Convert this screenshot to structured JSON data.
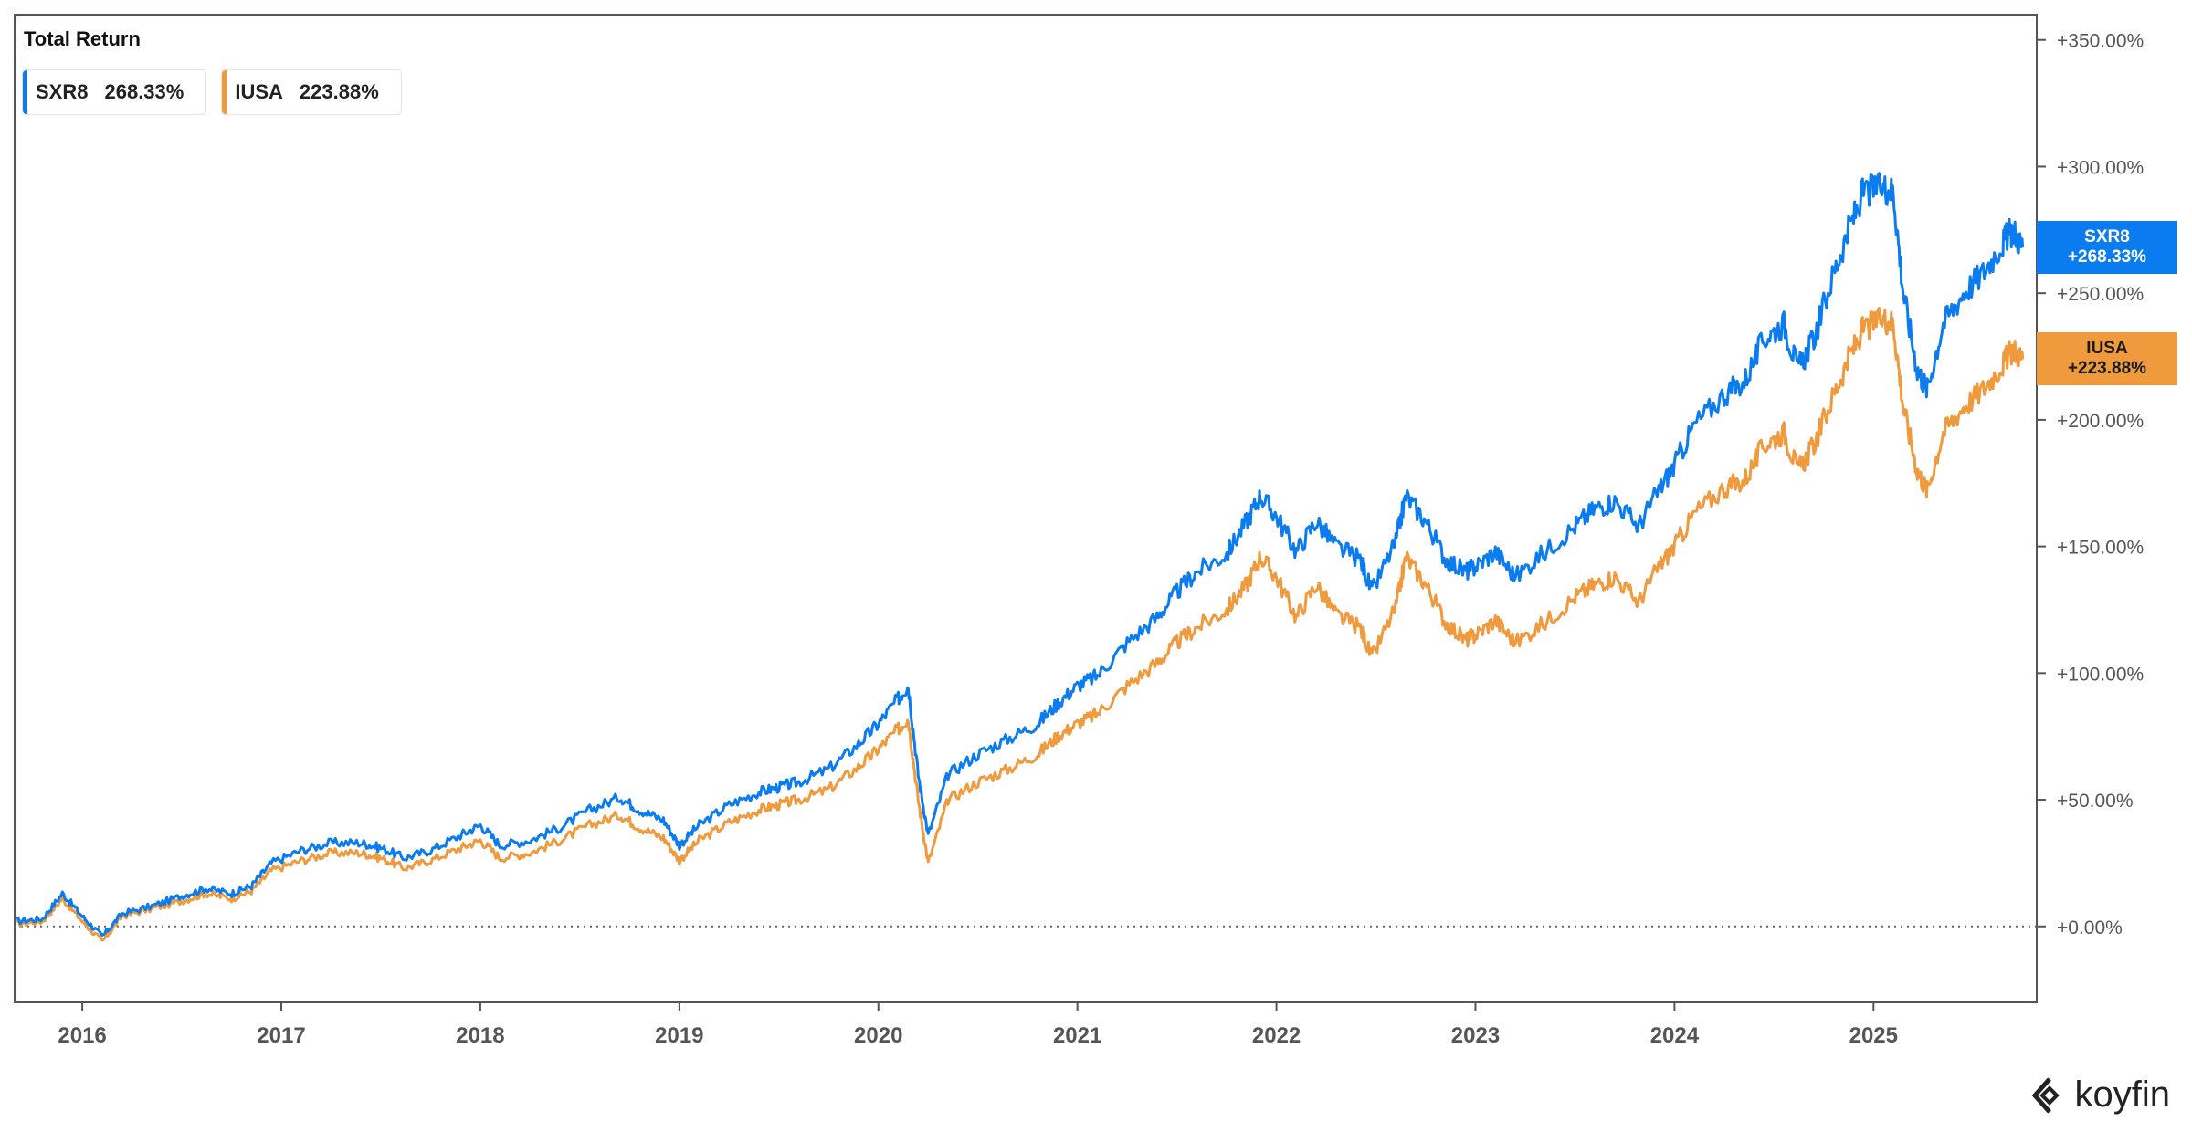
{
  "colors": {
    "sxr8": "#0a7cf0",
    "iusa": "#f09a3e",
    "axis": "#555555",
    "zero": "#666666"
  },
  "icons": {
    "logo": "koyfin-logo-icon"
  },
  "brand": "koyfin",
  "chart_data": {
    "type": "line",
    "title": "Total Return",
    "xlabel": "",
    "ylabel": "",
    "xlim": [
      2015.66,
      2025.82
    ],
    "ylim": [
      -30,
      360
    ],
    "grid": false,
    "legend": "top-left",
    "x_ticks": [
      {
        "x": 2016,
        "label": "2016"
      },
      {
        "x": 2017,
        "label": "2017"
      },
      {
        "x": 2018,
        "label": "2018"
      },
      {
        "x": 2019,
        "label": "2019"
      },
      {
        "x": 2020,
        "label": "2020"
      },
      {
        "x": 2021,
        "label": "2021"
      },
      {
        "x": 2022,
        "label": "2022"
      },
      {
        "x": 2023,
        "label": "2023"
      },
      {
        "x": 2024,
        "label": "2024"
      },
      {
        "x": 2025,
        "label": "2025"
      }
    ],
    "y_ticks": [
      {
        "y": 0,
        "label": "+0.00%"
      },
      {
        "y": 50,
        "label": "+50.00%"
      },
      {
        "y": 100,
        "label": "+100.00%"
      },
      {
        "y": 150,
        "label": "+150.00%"
      },
      {
        "y": 200,
        "label": "+200.00%"
      },
      {
        "y": 250,
        "label": "+250.00%"
      },
      {
        "y": 300,
        "label": "+300.00%"
      },
      {
        "y": 350,
        "label": "+350.00%"
      }
    ],
    "series": [
      {
        "name": "SXR8",
        "last": "268.33%",
        "tag": "+268.33%",
        "color": "#0a7cf0",
        "points": [
          [
            2015.67,
            2
          ],
          [
            2015.8,
            3
          ],
          [
            2015.9,
            13
          ],
          [
            2016.0,
            4
          ],
          [
            2016.1,
            -4
          ],
          [
            2016.2,
            5
          ],
          [
            2016.35,
            8
          ],
          [
            2016.5,
            12
          ],
          [
            2016.62,
            15
          ],
          [
            2016.75,
            13
          ],
          [
            2016.85,
            16
          ],
          [
            2016.95,
            25
          ],
          [
            2017.1,
            30
          ],
          [
            2017.25,
            33
          ],
          [
            2017.4,
            33
          ],
          [
            2017.5,
            31
          ],
          [
            2017.62,
            27
          ],
          [
            2017.75,
            30
          ],
          [
            2017.9,
            36
          ],
          [
            2018.0,
            40
          ],
          [
            2018.1,
            32
          ],
          [
            2018.25,
            34
          ],
          [
            2018.4,
            39
          ],
          [
            2018.55,
            46
          ],
          [
            2018.7,
            51
          ],
          [
            2018.8,
            46
          ],
          [
            2018.92,
            42
          ],
          [
            2019.0,
            32
          ],
          [
            2019.1,
            40
          ],
          [
            2019.25,
            48
          ],
          [
            2019.4,
            53
          ],
          [
            2019.5,
            55
          ],
          [
            2019.6,
            57
          ],
          [
            2019.75,
            62
          ],
          [
            2019.9,
            72
          ],
          [
            2020.0,
            80
          ],
          [
            2020.1,
            90
          ],
          [
            2020.15,
            95
          ],
          [
            2020.2,
            60
          ],
          [
            2020.25,
            36
          ],
          [
            2020.35,
            60
          ],
          [
            2020.5,
            68
          ],
          [
            2020.65,
            74
          ],
          [
            2020.8,
            80
          ],
          [
            2020.9,
            88
          ],
          [
            2021.0,
            95
          ],
          [
            2021.1,
            99
          ],
          [
            2021.25,
            112
          ],
          [
            2021.4,
            122
          ],
          [
            2021.5,
            132
          ],
          [
            2021.6,
            140
          ],
          [
            2021.75,
            147
          ],
          [
            2021.85,
            160
          ],
          [
            2021.92,
            170
          ],
          [
            2022.0,
            162
          ],
          [
            2022.1,
            148
          ],
          [
            2022.2,
            160
          ],
          [
            2022.3,
            150
          ],
          [
            2022.42,
            145
          ],
          [
            2022.48,
            132
          ],
          [
            2022.6,
            152
          ],
          [
            2022.65,
            170
          ],
          [
            2022.75,
            160
          ],
          [
            2022.85,
            145
          ],
          [
            2022.95,
            140
          ],
          [
            2023.0,
            142
          ],
          [
            2023.1,
            148
          ],
          [
            2023.2,
            138
          ],
          [
            2023.35,
            148
          ],
          [
            2023.5,
            158
          ],
          [
            2023.6,
            165
          ],
          [
            2023.7,
            168
          ],
          [
            2023.82,
            158
          ],
          [
            2023.92,
            172
          ],
          [
            2024.0,
            182
          ],
          [
            2024.1,
            198
          ],
          [
            2024.25,
            210
          ],
          [
            2024.35,
            215
          ],
          [
            2024.45,
            232
          ],
          [
            2024.55,
            238
          ],
          [
            2024.62,
            220
          ],
          [
            2024.7,
            232
          ],
          [
            2024.8,
            258
          ],
          [
            2024.88,
            276
          ],
          [
            2024.95,
            290
          ],
          [
            2025.05,
            292
          ],
          [
            2025.1,
            290
          ],
          [
            2025.15,
            250
          ],
          [
            2025.22,
            220
          ],
          [
            2025.27,
            212
          ],
          [
            2025.35,
            238
          ],
          [
            2025.45,
            250
          ],
          [
            2025.55,
            258
          ],
          [
            2025.65,
            270
          ],
          [
            2025.7,
            275
          ],
          [
            2025.75,
            268
          ]
        ]
      },
      {
        "name": "IUSA",
        "last": "223.88%",
        "tag": "+223.88%",
        "color": "#f09a3e",
        "points": [
          [
            2015.67,
            1
          ],
          [
            2015.8,
            2
          ],
          [
            2015.9,
            11
          ],
          [
            2016.0,
            2
          ],
          [
            2016.1,
            -6
          ],
          [
            2016.2,
            4
          ],
          [
            2016.35,
            7
          ],
          [
            2016.5,
            10
          ],
          [
            2016.62,
            13
          ],
          [
            2016.75,
            11
          ],
          [
            2016.85,
            14
          ],
          [
            2016.95,
            22
          ],
          [
            2017.1,
            26
          ],
          [
            2017.25,
            29
          ],
          [
            2017.4,
            29
          ],
          [
            2017.5,
            27
          ],
          [
            2017.62,
            23
          ],
          [
            2017.75,
            26
          ],
          [
            2017.9,
            31
          ],
          [
            2018.0,
            34
          ],
          [
            2018.1,
            27
          ],
          [
            2018.25,
            29
          ],
          [
            2018.4,
            34
          ],
          [
            2018.55,
            40
          ],
          [
            2018.7,
            44
          ],
          [
            2018.8,
            39
          ],
          [
            2018.92,
            35
          ],
          [
            2019.0,
            26
          ],
          [
            2019.1,
            34
          ],
          [
            2019.25,
            41
          ],
          [
            2019.4,
            46
          ],
          [
            2019.5,
            48
          ],
          [
            2019.6,
            50
          ],
          [
            2019.75,
            54
          ],
          [
            2019.9,
            63
          ],
          [
            2020.0,
            70
          ],
          [
            2020.1,
            78
          ],
          [
            2020.15,
            82
          ],
          [
            2020.2,
            50
          ],
          [
            2020.25,
            25
          ],
          [
            2020.35,
            50
          ],
          [
            2020.5,
            57
          ],
          [
            2020.65,
            62
          ],
          [
            2020.8,
            68
          ],
          [
            2020.9,
            75
          ],
          [
            2021.0,
            80
          ],
          [
            2021.1,
            84
          ],
          [
            2021.25,
            95
          ],
          [
            2021.4,
            104
          ],
          [
            2021.5,
            112
          ],
          [
            2021.6,
            118
          ],
          [
            2021.75,
            125
          ],
          [
            2021.85,
            135
          ],
          [
            2021.92,
            146
          ],
          [
            2022.0,
            138
          ],
          [
            2022.1,
            122
          ],
          [
            2022.2,
            135
          ],
          [
            2022.3,
            123
          ],
          [
            2022.42,
            118
          ],
          [
            2022.48,
            106
          ],
          [
            2022.6,
            126
          ],
          [
            2022.65,
            146
          ],
          [
            2022.75,
            135
          ],
          [
            2022.85,
            120
          ],
          [
            2022.95,
            113
          ],
          [
            2023.0,
            115
          ],
          [
            2023.1,
            121
          ],
          [
            2023.2,
            112
          ],
          [
            2023.35,
            120
          ],
          [
            2023.5,
            130
          ],
          [
            2023.6,
            135
          ],
          [
            2023.7,
            138
          ],
          [
            2023.82,
            128
          ],
          [
            2023.92,
            142
          ],
          [
            2024.0,
            150
          ],
          [
            2024.1,
            163
          ],
          [
            2024.25,
            173
          ],
          [
            2024.35,
            176
          ],
          [
            2024.45,
            190
          ],
          [
            2024.55,
            195
          ],
          [
            2024.62,
            180
          ],
          [
            2024.7,
            190
          ],
          [
            2024.8,
            210
          ],
          [
            2024.88,
            225
          ],
          [
            2024.95,
            236
          ],
          [
            2025.05,
            240
          ],
          [
            2025.1,
            238
          ],
          [
            2025.15,
            205
          ],
          [
            2025.22,
            180
          ],
          [
            2025.27,
            172
          ],
          [
            2025.35,
            195
          ],
          [
            2025.45,
            205
          ],
          [
            2025.55,
            212
          ],
          [
            2025.65,
            222
          ],
          [
            2025.7,
            228
          ],
          [
            2025.75,
            224
          ]
        ]
      }
    ]
  }
}
